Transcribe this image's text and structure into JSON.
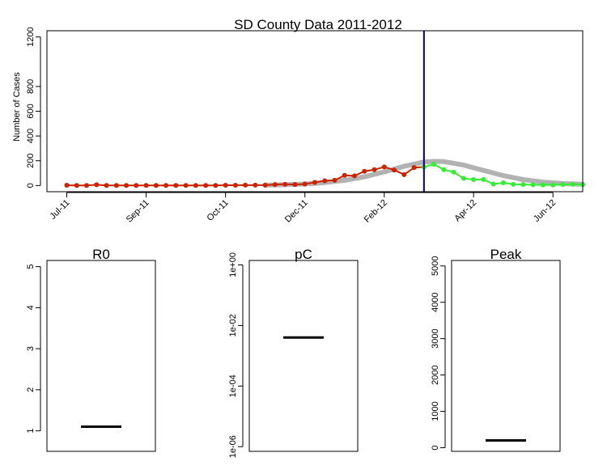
{
  "chart_data": [
    {
      "type": "line",
      "title": "SD County Data 2011-2012",
      "xlabel": "",
      "ylabel": "Number of Cases",
      "ylim": [
        -50,
        1250
      ],
      "x_tick_labels": [
        "Jul-11",
        "Sep-11",
        "Oct-11",
        "Dec-11",
        "Feb-12",
        "Apr-12",
        "Jun-12"
      ],
      "y_tick_labels": [
        "0",
        "200",
        "400",
        "600",
        "800",
        "1200"
      ],
      "y_ticks": [
        0,
        200,
        400,
        600,
        800,
        1200
      ],
      "x_tick_weeks": [
        0,
        8,
        16,
        24,
        32,
        41,
        49
      ],
      "x_range_weeks": [
        -2,
        52
      ],
      "cutoff_week": 36,
      "vertical_line_color": "#00008b",
      "grid": false,
      "series": [
        {
          "role": "observed-fit",
          "color": "#cc2200",
          "weeks": [
            0,
            1,
            2,
            3,
            4,
            5,
            6,
            7,
            8,
            9,
            10,
            11,
            12,
            13,
            14,
            15,
            16,
            17,
            18,
            19,
            20,
            21,
            22,
            23,
            24,
            25,
            26,
            27,
            28,
            29,
            30,
            31,
            32,
            33,
            34,
            35,
            36
          ],
          "values": [
            2,
            1,
            1,
            6,
            1,
            1,
            1,
            1,
            1,
            1,
            1,
            1,
            1,
            1,
            1,
            1,
            2,
            2,
            3,
            3,
            3,
            8,
            10,
            8,
            12,
            25,
            38,
            42,
            82,
            78,
            115,
            128,
            150,
            125,
            88,
            145,
            150
          ]
        },
        {
          "role": "observed-future",
          "color": "#33ee33",
          "weeks": [
            36,
            37,
            38,
            39,
            40,
            41,
            42,
            43,
            44,
            45,
            46,
            47,
            48,
            49,
            50,
            51,
            52
          ],
          "values": [
            150,
            172,
            128,
            108,
            58,
            48,
            48,
            12,
            22,
            10,
            8,
            6,
            5,
            5,
            8,
            10,
            6
          ]
        },
        {
          "role": "model-curves",
          "color": "#aaaaaa",
          "weeks": [
            20,
            22,
            24,
            26,
            28,
            30,
            32,
            34,
            36,
            37,
            38,
            40,
            42,
            44,
            46,
            48,
            50,
            52
          ],
          "values": [
            3,
            6,
            12,
            24,
            42,
            70,
            110,
            155,
            190,
            195,
            193,
            165,
            122,
            80,
            48,
            28,
            16,
            10
          ]
        }
      ]
    },
    {
      "type": "box",
      "title": "R0",
      "y_tick_labels": [
        "1",
        "2",
        "3",
        "4",
        "5"
      ],
      "y_ticks": [
        1,
        2,
        3,
        4,
        5
      ],
      "ylim": [
        0.5,
        5.15
      ],
      "values": [
        1.1
      ]
    },
    {
      "type": "box",
      "title": "pC",
      "scale": "log",
      "y_tick_labels": [
        "1e-06",
        "1e-04",
        "1e-02",
        "1e+00"
      ],
      "y_ticks": [
        1e-06,
        0.0001,
        0.01,
        1
      ],
      "ylim": [
        7e-07,
        1.4
      ],
      "values": [
        0.004
      ]
    },
    {
      "type": "box",
      "title": "Peak",
      "y_tick_labels": [
        "0",
        "1000",
        "2000",
        "3000",
        "4000",
        "5000"
      ],
      "y_ticks": [
        0,
        1000,
        2000,
        3000,
        4000,
        5000
      ],
      "ylim": [
        -100,
        5150
      ],
      "values": [
        200
      ]
    }
  ]
}
